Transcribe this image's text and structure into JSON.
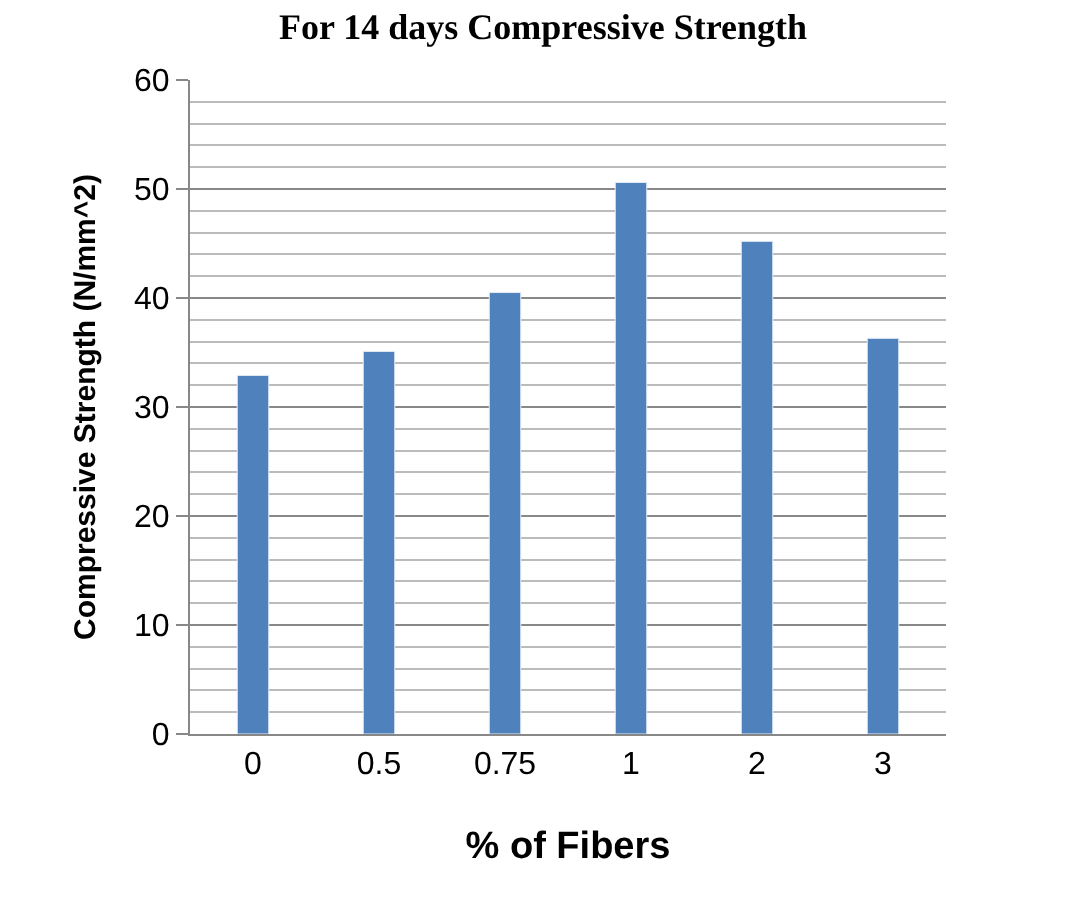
{
  "chart_data": {
    "type": "bar",
    "title": "For 14 days Compressive Strength",
    "xlabel": "% of Fibers",
    "ylabel": "Compressive Strength (N/mm^2)",
    "categories": [
      "0",
      "0.5",
      "0.75",
      "1",
      "2",
      "3"
    ],
    "values": [
      32.9,
      35.1,
      40.5,
      50.6,
      45.2,
      36.3
    ],
    "color": "#4f81bd",
    "ylim": [
      0,
      60
    ],
    "yticks": [
      0,
      10,
      20,
      30,
      40,
      50,
      60
    ],
    "grid": "y"
  }
}
